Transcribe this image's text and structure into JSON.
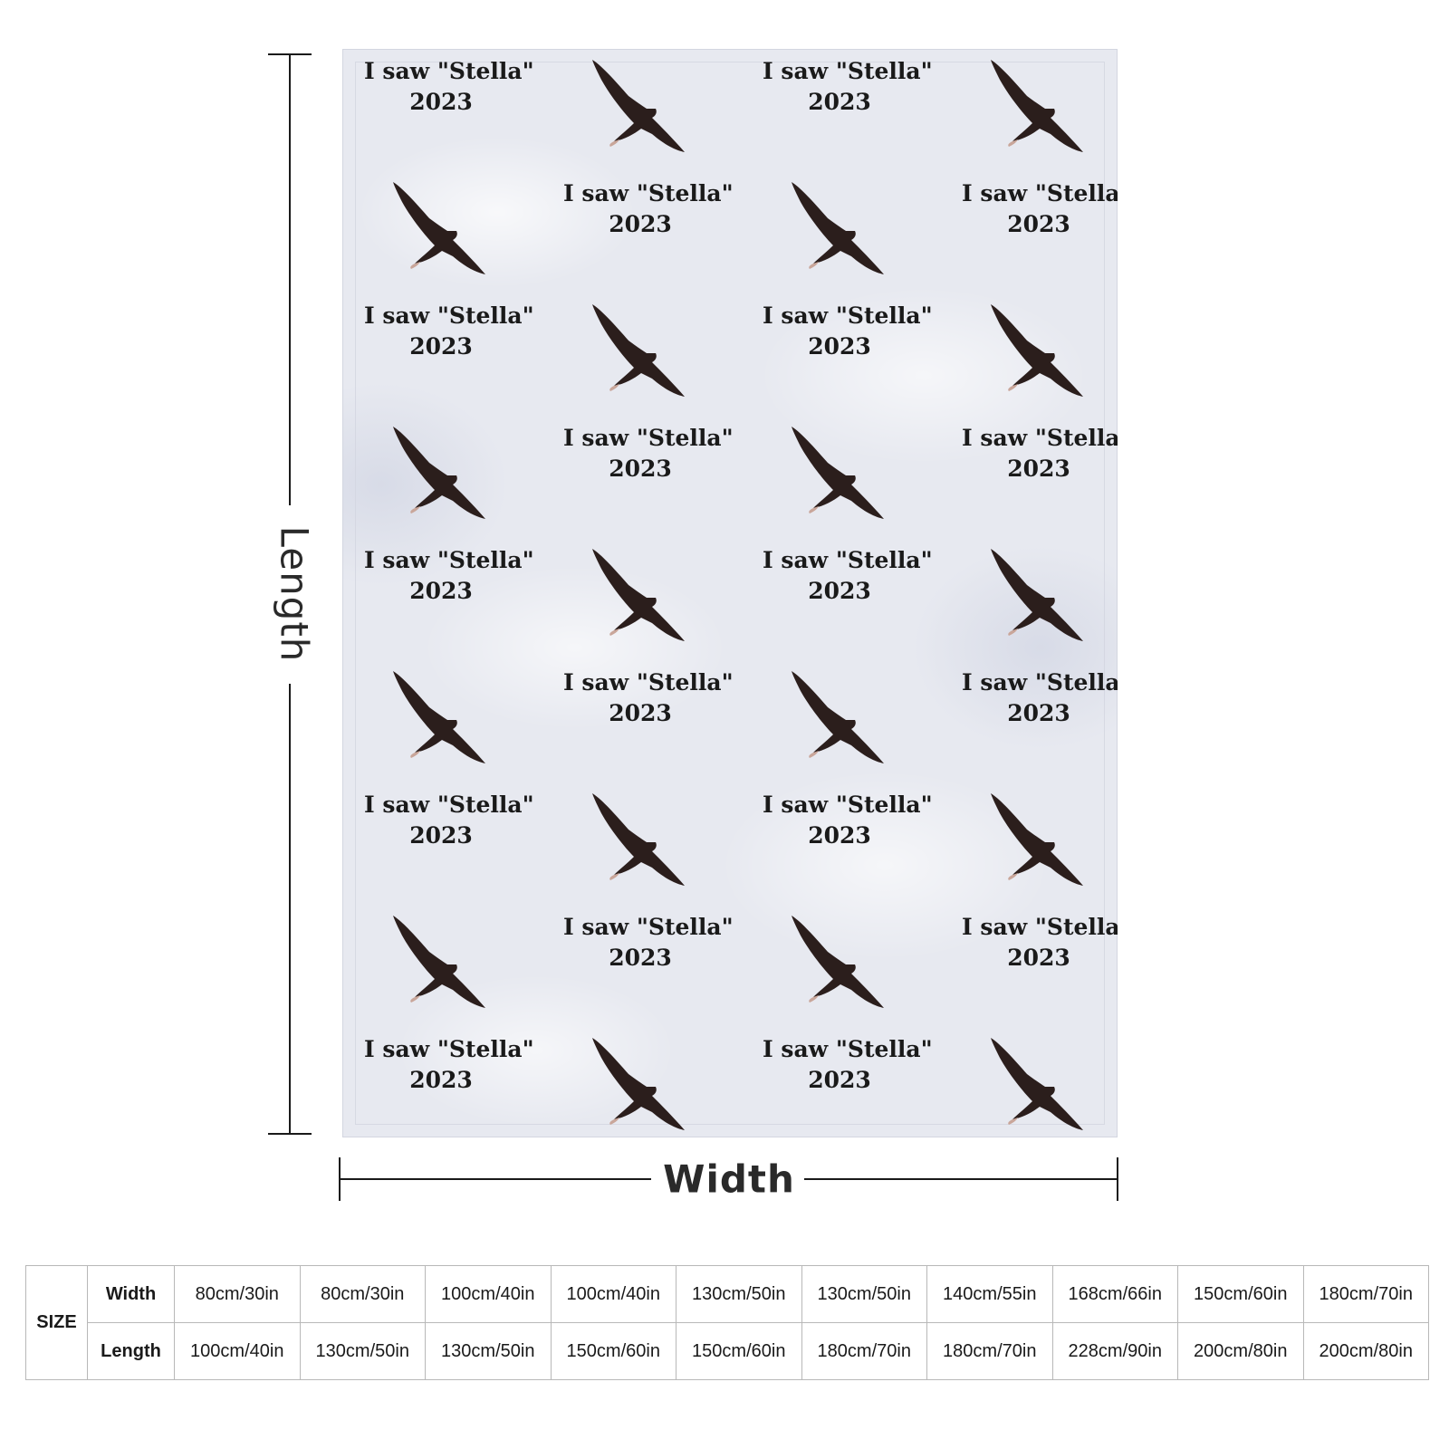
{
  "dimensions": {
    "length_label": "Length",
    "width_label": "Width"
  },
  "blanket": {
    "caption_line1": "I saw \"Stella\"",
    "caption_line2": "2023",
    "eagle_icon": "flying-eagle-icon",
    "colors": {
      "background": "#e7e9f0",
      "text": "#1a1a1a",
      "eagle": "#2b1e1c"
    }
  },
  "size_table": {
    "header": "SIZE",
    "row_labels": [
      "Width",
      "Length"
    ],
    "widths": [
      "80cm/30in",
      "80cm/30in",
      "100cm/40in",
      "100cm/40in",
      "130cm/50in",
      "130cm/50in",
      "140cm/55in",
      "168cm/66in",
      "150cm/60in",
      "180cm/70in"
    ],
    "lengths": [
      "100cm/40in",
      "130cm/50in",
      "130cm/50in",
      "150cm/60in",
      "150cm/60in",
      "180cm/70in",
      "180cm/70in",
      "228cm/90in",
      "200cm/80in",
      "200cm/80in"
    ]
  }
}
